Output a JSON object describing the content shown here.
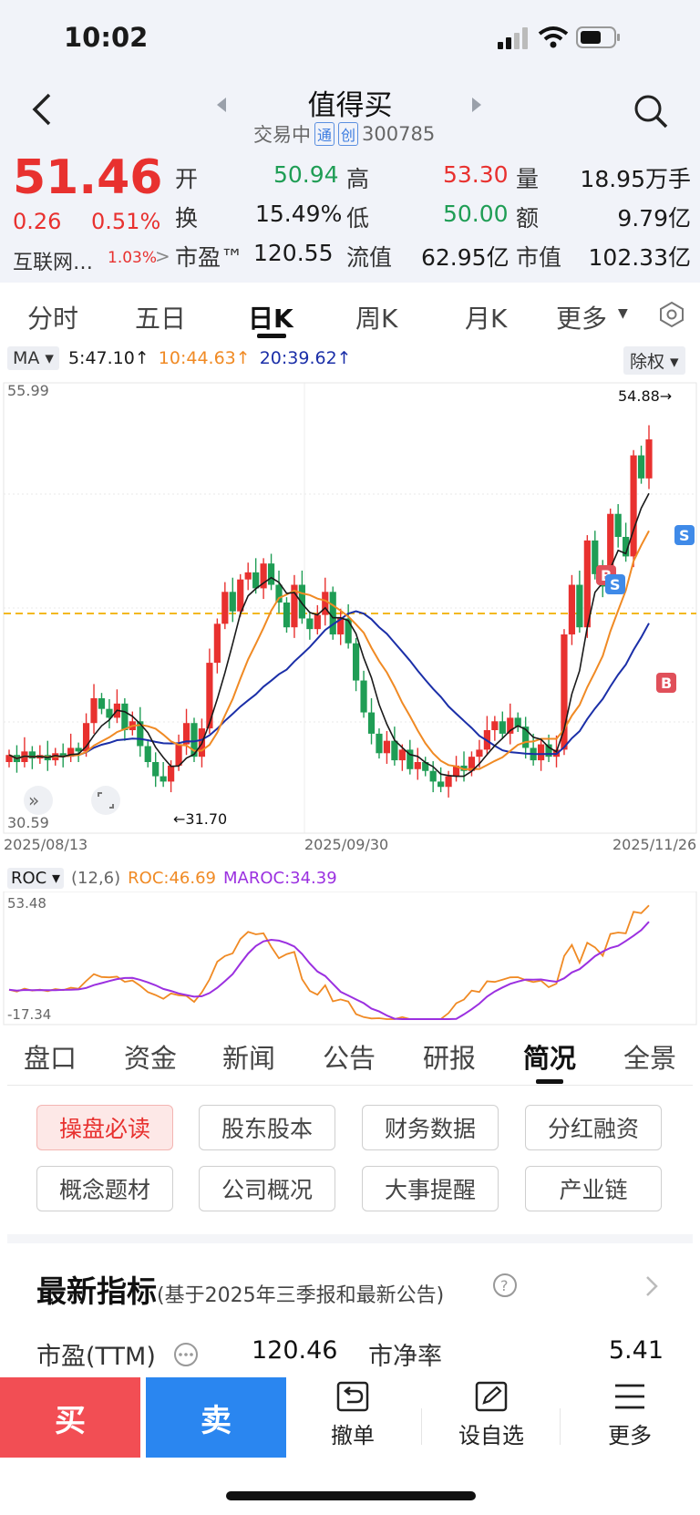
{
  "status_bar": {
    "time": "10:02"
  },
  "header": {
    "title": "值得买",
    "status_text": "交易中",
    "badge_tong": "通",
    "badge_chuang": "创",
    "code": "300785"
  },
  "quote": {
    "price": "51.46",
    "change": "0.26",
    "change_pct": "0.51%",
    "sector": "互联网…",
    "sector_pct": "1.03%",
    "open_label": "开",
    "open": "50.94",
    "high_label": "高",
    "high": "53.30",
    "volume_label": "量",
    "volume": "18.95万手",
    "turnover_label": "换",
    "turnover": "15.49%",
    "low_label": "低",
    "low": "50.00",
    "amount_label": "额",
    "amount": "9.79亿",
    "pe_label": "市盈™",
    "pe": "120.55",
    "float_label": "流值",
    "float_value": "62.95亿",
    "mcap_label": "市值",
    "mcap": "102.33亿"
  },
  "chart_tabs": [
    "分时",
    "五日",
    "日K",
    "周K",
    "月K",
    "更多"
  ],
  "ma_bar": {
    "label": "MA",
    "ma5": "5:47.10↑",
    "ma10": "10:44.63↑",
    "ma20": "20:39.62↑",
    "adjust": "除权"
  },
  "kline": {
    "y_top": "55.99",
    "y_bottom": "30.59",
    "max_label": "54.88→",
    "min_label": "←31.70",
    "dates": [
      "2025/08/13",
      "2025/09/30",
      "2025/11/26"
    ],
    "marker_buy": "B",
    "marker_sell": "S"
  },
  "roc": {
    "label": "ROC",
    "params": "(12,6)",
    "roc_value": "ROC:46.69",
    "maroc_value": "MAROC:34.39",
    "y_top": "53.48",
    "y_bottom": "-17.34"
  },
  "info_tabs": [
    "盘口",
    "资金",
    "新闻",
    "公告",
    "研报",
    "简况",
    "全景"
  ],
  "info_buttons": [
    "操盘必读",
    "股东股本",
    "财务数据",
    "分红融资",
    "概念题材",
    "公司概况",
    "大事提醒",
    "产业链"
  ],
  "latest": {
    "title": "最新指标",
    "subtitle": "(基于2025年三季报和最新公告)",
    "pe_ttm_label": "市盈(TTM)",
    "pe_ttm": "120.46",
    "pb_label": "市净率",
    "pb": "5.41"
  },
  "bottom_bar": {
    "buy": "买",
    "sell": "卖",
    "cancel": "撤单",
    "watch": "设自选",
    "more": "更多"
  },
  "colors": {
    "up": "#e8312f",
    "down": "#1f9d55",
    "ma5": "#1a1a1a",
    "ma10": "#f08a24",
    "ma20": "#1b2fa8",
    "maroc": "#9b30e0",
    "buy_bg": "#f24e54",
    "sell_bg": "#2a86f0"
  }
}
